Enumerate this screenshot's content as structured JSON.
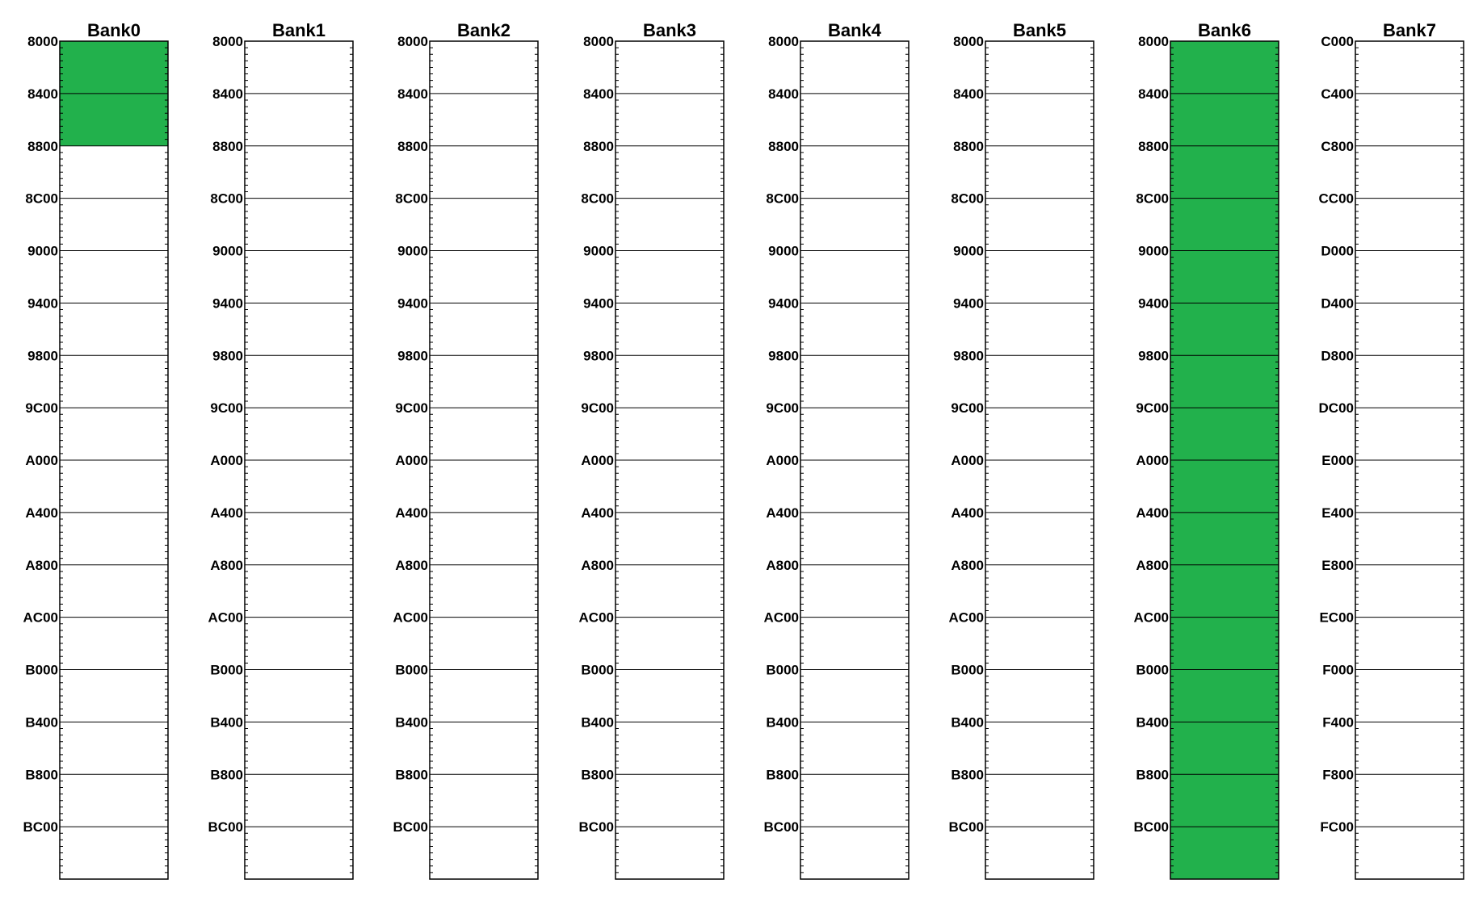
{
  "memory_map": {
    "colors": {
      "used": "#22b14c",
      "free": "#ffffff",
      "line": "#000000"
    },
    "banks": [
      {
        "title": "Bank0",
        "addresses": [
          "8000",
          "8400",
          "8800",
          "8C00",
          "9000",
          "9400",
          "9800",
          "9C00",
          "A000",
          "A400",
          "A800",
          "AC00",
          "B000",
          "B400",
          "B800",
          "BC00"
        ],
        "used_from": 0,
        "used_to": 2
      },
      {
        "title": "Bank1",
        "addresses": [
          "8000",
          "8400",
          "8800",
          "8C00",
          "9000",
          "9400",
          "9800",
          "9C00",
          "A000",
          "A400",
          "A800",
          "AC00",
          "B000",
          "B400",
          "B800",
          "BC00"
        ],
        "used_from": 0,
        "used_to": 0
      },
      {
        "title": "Bank2",
        "addresses": [
          "8000",
          "8400",
          "8800",
          "8C00",
          "9000",
          "9400",
          "9800",
          "9C00",
          "A000",
          "A400",
          "A800",
          "AC00",
          "B000",
          "B400",
          "B800",
          "BC00"
        ],
        "used_from": 0,
        "used_to": 0
      },
      {
        "title": "Bank3",
        "addresses": [
          "8000",
          "8400",
          "8800",
          "8C00",
          "9000",
          "9400",
          "9800",
          "9C00",
          "A000",
          "A400",
          "A800",
          "AC00",
          "B000",
          "B400",
          "B800",
          "BC00"
        ],
        "used_from": 0,
        "used_to": 0
      },
      {
        "title": "Bank4",
        "addresses": [
          "8000",
          "8400",
          "8800",
          "8C00",
          "9000",
          "9400",
          "9800",
          "9C00",
          "A000",
          "A400",
          "A800",
          "AC00",
          "B000",
          "B400",
          "B800",
          "BC00"
        ],
        "used_from": 0,
        "used_to": 0
      },
      {
        "title": "Bank5",
        "addresses": [
          "8000",
          "8400",
          "8800",
          "8C00",
          "9000",
          "9400",
          "9800",
          "9C00",
          "A000",
          "A400",
          "A800",
          "AC00",
          "B000",
          "B400",
          "B800",
          "BC00"
        ],
        "used_from": 0,
        "used_to": 0
      },
      {
        "title": "Bank6",
        "addresses": [
          "8000",
          "8400",
          "8800",
          "8C00",
          "9000",
          "9400",
          "9800",
          "9C00",
          "A000",
          "A400",
          "A800",
          "AC00",
          "B000",
          "B400",
          "B800",
          "BC00"
        ],
        "used_from": 0,
        "used_to": 16
      },
      {
        "title": "Bank7",
        "addresses": [
          "C000",
          "C400",
          "C800",
          "CC00",
          "D000",
          "D400",
          "D800",
          "DC00",
          "E000",
          "E400",
          "E800",
          "EC00",
          "F000",
          "F400",
          "F800",
          "FC00"
        ],
        "used_from": 0,
        "used_to": 0
      }
    ]
  }
}
